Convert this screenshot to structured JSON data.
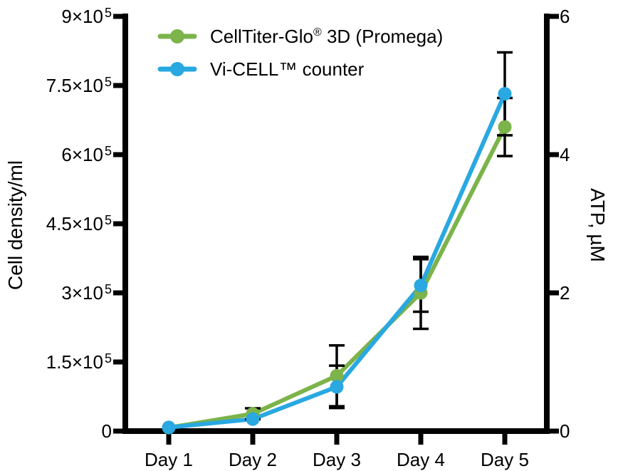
{
  "chart_data": {
    "type": "line",
    "title": "",
    "x_categories": [
      "Day 1",
      "Day 2",
      "Day 3",
      "Day 4",
      "Day 5"
    ],
    "grid": false,
    "legend_position": "top-inside",
    "axis_color": "#000000",
    "error_bar_color": "#000000",
    "left_axis": {
      "label": "Cell density/ml",
      "range": [
        0,
        900000
      ],
      "ticks": [
        {
          "text": "0",
          "value": 0
        },
        {
          "mantissa": "1.5",
          "exp": "5",
          "value": 150000
        },
        {
          "mantissa": "3",
          "exp": "5",
          "value": 300000
        },
        {
          "mantissa": "4.5",
          "exp": "5",
          "value": 450000
        },
        {
          "mantissa": "6",
          "exp": "5",
          "value": 600000
        },
        {
          "mantissa": "7.5",
          "exp": "5",
          "value": 750000
        },
        {
          "mantissa": "9",
          "exp": "5",
          "value": 900000
        }
      ]
    },
    "right_axis": {
      "label": "ATP, µM",
      "range": [
        0,
        6
      ],
      "ticks": [
        {
          "text": "0",
          "value": 0
        },
        {
          "text": "2",
          "value": 2
        },
        {
          "text": "4",
          "value": 4
        },
        {
          "text": "6",
          "value": 6
        }
      ]
    },
    "series": [
      {
        "name": "CellTiter-Glo® 3D (Promega)",
        "axis": "right",
        "unit": "µM",
        "color": "#7CB34A",
        "values": [
          0.05,
          0.25,
          0.8,
          2.0,
          4.4
        ],
        "errors": [
          0,
          0.08,
          0.44,
          0.52,
          0.42
        ]
      },
      {
        "name": "Vi-CELL™ counter",
        "axis": "left",
        "unit": "cells/ml",
        "color": "#29A8E1",
        "values": [
          8000,
          26000,
          96000,
          316000,
          732000
        ],
        "errors": [
          0,
          0,
          46000,
          57000,
          90000
        ]
      }
    ],
    "legend": [
      {
        "pre": "CellTiter-Glo",
        "sup": "®",
        "post": " 3D (Promega)",
        "color": "#7CB34A"
      },
      {
        "pre": "Vi-CELL™ counter",
        "sup": "",
        "post": "",
        "color": "#29A8E1"
      }
    ]
  }
}
